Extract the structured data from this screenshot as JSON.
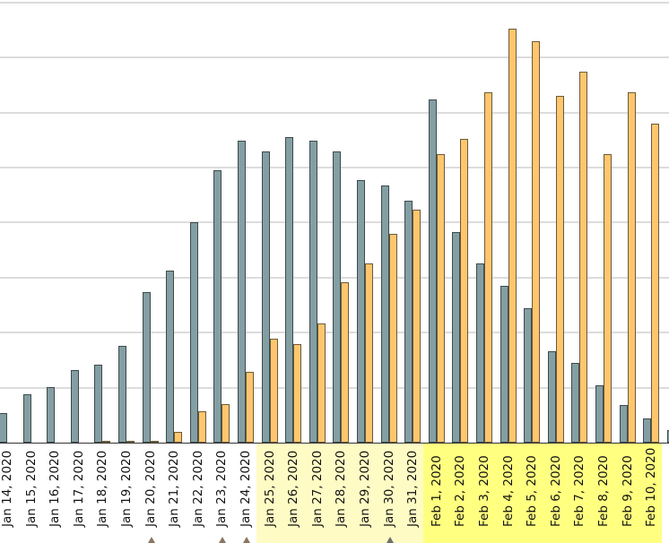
{
  "chart_data": {
    "type": "bar",
    "title": "",
    "xlabel": "",
    "ylabel": "",
    "y_units_note": "Y-axis tick labels not visible (cropped); values expressed in gridline units (each gridline = 1 unit)",
    "ylim": [
      0,
      8
    ],
    "grid": true,
    "legend": "not visible",
    "categories": [
      "Jan 14, 2020",
      "Jan 15, 2020",
      "Jan 16, 2020",
      "Jan 17, 2020",
      "Jan 18, 2020",
      "Jan 19, 2020",
      "Jan 20, 2020",
      "Jan 21, 2020",
      "Jan 22, 2020",
      "Jan 23, 2020",
      "Jan 24, 2020",
      "Jan 25, 2020",
      "Jan 26, 2020",
      "Jan 27, 2020",
      "Jan 28, 2020",
      "Jan 29, 2020",
      "Jan 30, 2020",
      "Jan 31, 2020",
      "Feb 1, 2020",
      "Feb 2, 2020",
      "Feb 3, 2020",
      "Feb 4, 2020",
      "Feb 5, 2020",
      "Feb 6, 2020",
      "Feb 7, 2020",
      "Feb 8, 2020",
      "Feb 9, 2020",
      "Feb 10, 2020"
    ],
    "series": [
      {
        "name": "grey series",
        "color": "#849fa3",
        "values": [
          0.54,
          0.88,
          1.01,
          1.32,
          1.42,
          1.76,
          2.74,
          3.13,
          4.01,
          4.95,
          5.49,
          5.29,
          5.55,
          5.49,
          5.29,
          4.77,
          4.67,
          4.4,
          6.24,
          3.83,
          3.26,
          2.85,
          2.44,
          1.66,
          1.45,
          1.04,
          0.68,
          0.44
        ]
      },
      {
        "name": "orange series",
        "color": "#ffc66e",
        "values": [
          0,
          0,
          0,
          0,
          0.03,
          0.02,
          0.02,
          0.2,
          0.57,
          0.7,
          1.29,
          1.89,
          1.79,
          2.17,
          2.92,
          3.26,
          3.79,
          4.23,
          5.24,
          5.52,
          6.37,
          7.52,
          7.3,
          6.3,
          6.74,
          5.24,
          6.37,
          5.8
        ]
      }
    ],
    "shaded_regions": [
      {
        "from": "Jan 25, 2020",
        "to": "Jan 31, 2020",
        "color": "#fffbc4"
      },
      {
        "from": "Feb 1, 2020",
        "to": "Feb 10, 2020",
        "color": "#ffff80"
      }
    ],
    "markers": [
      {
        "at": "Jan 20, 2020",
        "shape": "triangle",
        "color": "#8a7560"
      },
      {
        "at": "Jan 23, 2020",
        "shape": "triangle",
        "color": "#8a7560"
      },
      {
        "at": "Jan 24, 2020",
        "shape": "triangle",
        "color": "#8a7560"
      },
      {
        "at": "Jan 30, 2020",
        "shape": "triangle",
        "color": "#6e6e6e"
      }
    ]
  }
}
